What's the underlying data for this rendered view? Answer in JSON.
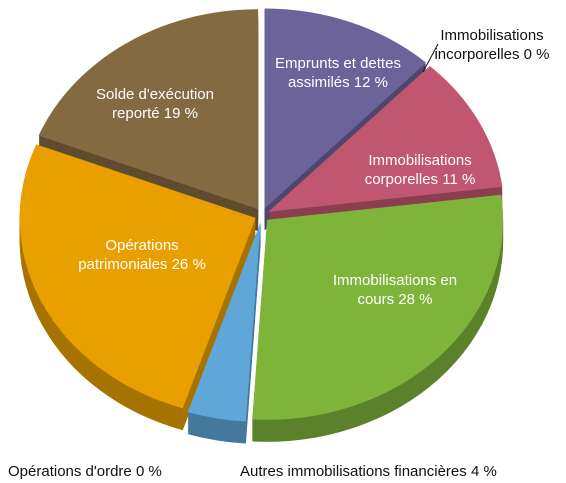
{
  "chart_data": {
    "type": "pie",
    "categories": [
      "Emprunts et dettes assimilés",
      "Immobilisations incorporelles",
      "Immobilisations corporelles",
      "Immobilisations en cours",
      "Autres immobilisations financières",
      "Opérations d'ordre",
      "Opérations patrimoniales",
      "Solde d'exécution reporté"
    ],
    "values": [
      12,
      0,
      11,
      28,
      4,
      0,
      26,
      19
    ],
    "value_labels": [
      "12 %",
      "0 %",
      "11 %",
      "28 %",
      "4 %",
      "0 %",
      "26 %",
      "19 %"
    ],
    "colors": [
      "#6b6399",
      "#2aa3a8",
      "#c0566f",
      "#7fb43a",
      "#5fa6d9",
      "#3a6a8a",
      "#e8a000",
      "#846a40"
    ]
  }
}
